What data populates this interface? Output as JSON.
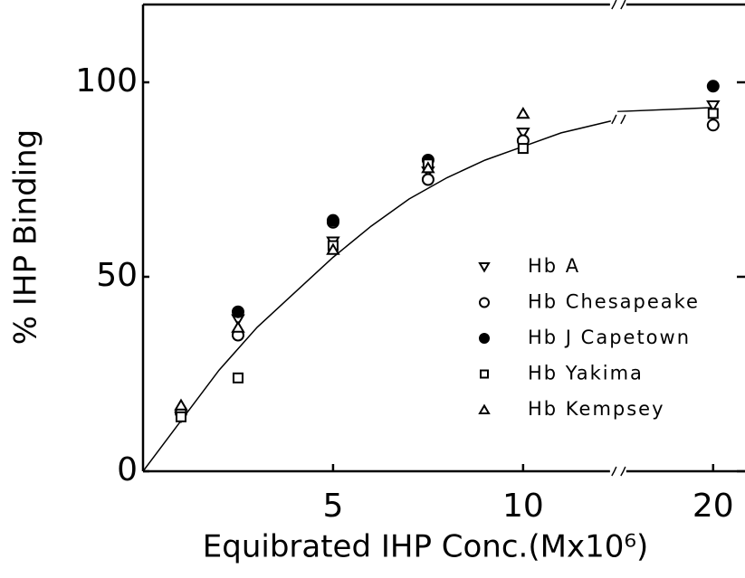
{
  "chart_data": {
    "type": "scatter",
    "xlabel": "Equibrated IHP Conc.(Mx10⁶)",
    "ylabel": "% IHP Binding",
    "x": [
      1,
      2.5,
      5,
      7.5,
      10,
      20
    ],
    "series": [
      {
        "name": "Hb A",
        "marker": "triangle-down",
        "color": "#000000",
        "values": [
          14,
          39,
          59,
          77,
          87,
          94
        ]
      },
      {
        "name": "Hb Chesapeake",
        "marker": "circle",
        "color": "#000000",
        "values": [
          15,
          35,
          64,
          75,
          85,
          89
        ]
      },
      {
        "name": "Hb J Capetown",
        "marker": "circle-filled",
        "color": "#000000",
        "values": [
          null,
          41,
          64.5,
          80,
          null,
          99
        ]
      },
      {
        "name": "Hb Yakima",
        "marker": "square",
        "color": "#000000",
        "values": [
          14,
          24,
          58,
          79,
          83,
          92
        ]
      },
      {
        "name": "Hb Kempsey",
        "marker": "triangle-up",
        "color": "#000000",
        "values": [
          17,
          37,
          57,
          78,
          92,
          null
        ]
      }
    ],
    "curve": {
      "x": [
        0,
        1,
        2,
        3,
        4,
        5,
        6,
        7,
        8,
        9,
        10,
        11,
        12.5,
        17.5,
        20
      ],
      "values": [
        0,
        13,
        26,
        37,
        46,
        55,
        63,
        70,
        75.5,
        80,
        83.5,
        87,
        90.5,
        92.5,
        93.5
      ]
    },
    "xlim": [
      0,
      20.6
    ],
    "xticks": [
      5,
      10,
      20
    ],
    "xbreak": [
      12.5,
      17.5
    ],
    "ylim": [
      0,
      120
    ],
    "yticks": [
      0,
      50,
      100
    ]
  }
}
